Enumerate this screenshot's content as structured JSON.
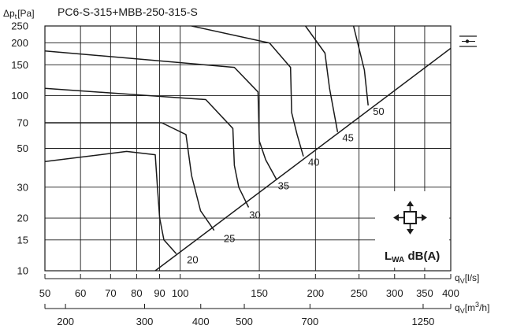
{
  "chart_data": {
    "type": "line",
    "title": "PC6-S-315+MBB-250-315-S",
    "y_axis": {
      "label": "Δp",
      "label_sub": "t",
      "label_unit": "[Pa]",
      "scale": "log",
      "range": [
        10,
        250
      ],
      "ticks": [
        10,
        15,
        20,
        30,
        50,
        70,
        100,
        150,
        200,
        250
      ]
    },
    "x_axis_primary": {
      "label": "q",
      "label_sub": "V",
      "label_unit": "[l/s]",
      "scale": "log",
      "range": [
        50,
        400
      ],
      "ticks": [
        50,
        60,
        70,
        80,
        90,
        100,
        150,
        200,
        250,
        300,
        350,
        400
      ]
    },
    "x_axis_secondary": {
      "label": "q",
      "label_sub": "V",
      "label_unit": "[m",
      "label_sup": "3",
      "label_tail": "/h]",
      "ticks": [
        200,
        300,
        400,
        500,
        700,
        1250
      ]
    },
    "grid": true,
    "curves": [
      {
        "x": [
          50,
          76,
          88,
          89,
          90,
          92,
          98
        ],
        "y": [
          42,
          48,
          46,
          30,
          20,
          15,
          12.5
        ]
      },
      {
        "x": [
          50,
          91,
          103,
          106,
          111,
          119
        ],
        "y": [
          70,
          70,
          60,
          35,
          22,
          17
        ]
      },
      {
        "x": [
          50,
          114,
          131,
          132,
          135,
          142
        ],
        "y": [
          110,
          95,
          65,
          40,
          30,
          23
        ]
      },
      {
        "x": [
          50,
          132,
          149,
          150,
          155,
          164
        ],
        "y": [
          180,
          145,
          105,
          55,
          43,
          33
        ]
      },
      {
        "x": [
          106,
          158,
          176,
          177,
          182,
          188
        ],
        "y": [
          250,
          200,
          145,
          80,
          60,
          45
        ]
      },
      {
        "x": [
          190,
          210,
          215,
          224
        ],
        "y": [
          250,
          175,
          110,
          62
        ]
      },
      {
        "x": [
          243,
          257,
          262
        ],
        "y": [
          250,
          140,
          88
        ]
      }
    ],
    "system_line": {
      "x": [
        88,
        404
      ],
      "y": [
        10,
        190
      ]
    },
    "sound_labels": [
      {
        "text": "20",
        "x": 101,
        "y": 12.5
      },
      {
        "text": "25",
        "x": 122,
        "y": 16.5
      },
      {
        "text": "30",
        "x": 139,
        "y": 22.5
      },
      {
        "text": "35",
        "x": 161,
        "y": 33
      },
      {
        "text": "40",
        "x": 188,
        "y": 45
      },
      {
        "text": "45",
        "x": 224,
        "y": 62
      },
      {
        "text": "50",
        "x": 262,
        "y": 88
      }
    ],
    "sound_unit": {
      "main": "L",
      "sub": "WA",
      "rest": " dB(A)"
    },
    "legend": "right"
  }
}
